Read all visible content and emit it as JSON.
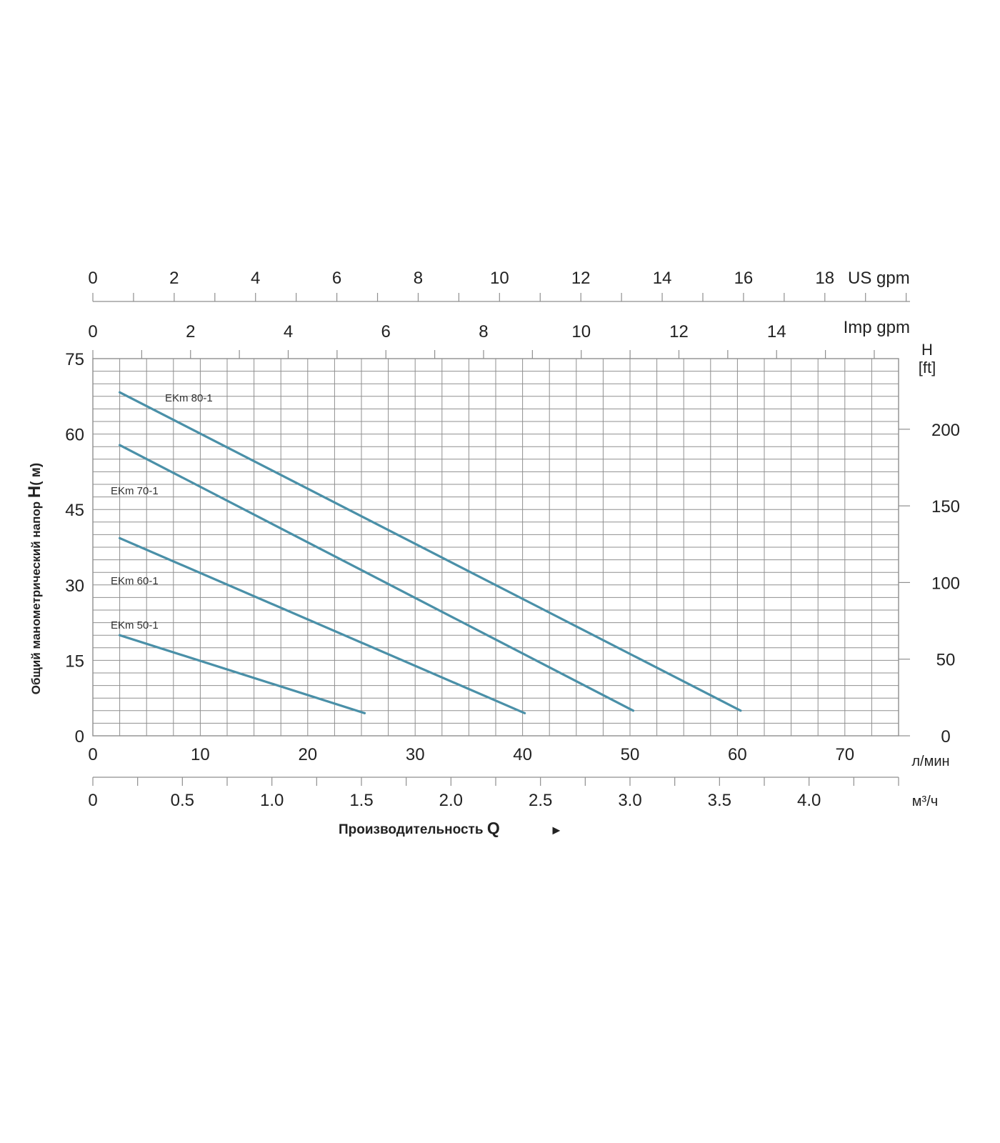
{
  "chart_data": {
    "type": "line",
    "ylabel_prefix": "Общий манометрический напор",
    "ylabel_h": "H",
    "ylabel_unit": "( м)",
    "xlabel_text": "Производительность",
    "xlabel_q": "Q",
    "xlabel_arrow": "►",
    "right_axis_title_line1": "H",
    "right_axis_title_line2": "[ft]",
    "x_unit_lmin": "л/мин",
    "x_unit_m3h": "м³/ч",
    "top_axis_us_unit": "US gpm",
    "top_axis_imp_unit": "Imp gpm",
    "xlim": [
      0,
      75
    ],
    "ylim": [
      0,
      75
    ],
    "y_ticks": [
      "0",
      "15",
      "30",
      "45",
      "60",
      "75"
    ],
    "y_ft_ticks": [
      "0",
      "50",
      "100",
      "150",
      "200"
    ],
    "x_ticks_lmin": [
      "0",
      "10",
      "20",
      "30",
      "40",
      "50",
      "60",
      "70"
    ],
    "x_ticks_m3h": [
      "0",
      "0.5",
      "1.0",
      "1.5",
      "2.0",
      "2.5",
      "3.0",
      "3.5",
      "4.0"
    ],
    "us_gpm_ticks": [
      "0",
      "2",
      "4",
      "6",
      "8",
      "10",
      "12",
      "14",
      "16",
      "18"
    ],
    "imp_gpm_ticks": [
      "0",
      "2",
      "4",
      "6",
      "8",
      "10",
      "12",
      "14"
    ],
    "grid": true,
    "series": [
      {
        "name": "EKm 80-1",
        "color": "#4a90a8",
        "points": [
          [
            2.5,
            68.3
          ],
          [
            60.3,
            5.0
          ]
        ]
      },
      {
        "name": "EKm 70-1",
        "color": "#4a90a8",
        "points": [
          [
            2.5,
            57.8
          ],
          [
            50.3,
            5.0
          ]
        ]
      },
      {
        "name": "EKm 60-1",
        "color": "#4a90a8",
        "points": [
          [
            2.5,
            39.3
          ],
          [
            40.2,
            4.5
          ]
        ]
      },
      {
        "name": "EKm 50-1",
        "color": "#4a90a8",
        "points": [
          [
            2.5,
            20.0
          ],
          [
            25.3,
            4.5
          ]
        ]
      }
    ]
  }
}
